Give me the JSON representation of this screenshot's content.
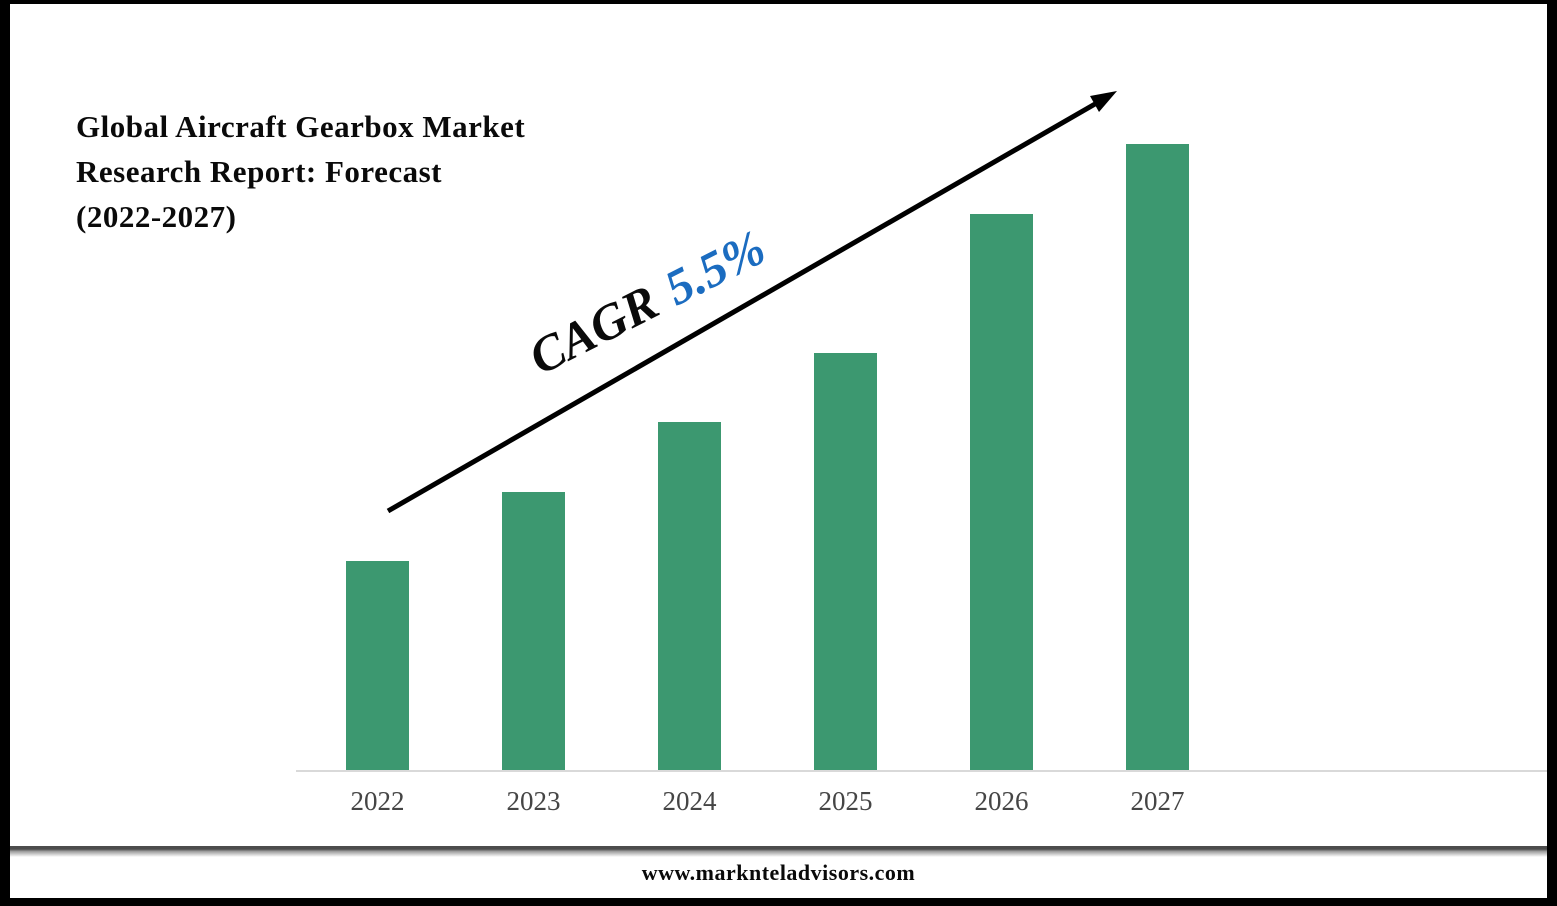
{
  "title": {
    "line1": "Global Aircraft Gearbox Market",
    "line2": "Research Report: Forecast",
    "line3": "(2022-2027)"
  },
  "annotation": {
    "prefix": "CAGR",
    "value": "5.5%"
  },
  "footer": {
    "website": "www.marknteladvisors.com"
  },
  "colors": {
    "bar_green": "#3C9870",
    "annotation_blue": "#1B6CC0",
    "text_black": "#0A0A0A",
    "axis_gray": "#D9D9D9",
    "year_label_gray": "#454545",
    "frame_black": "#000000"
  },
  "chart_data": {
    "type": "bar",
    "title": "Global Aircraft Gearbox Market Research Report: Forecast (2022-2027)",
    "categories": [
      "2022",
      "2023",
      "2024",
      "2025",
      "2026",
      "2027"
    ],
    "values": [
      3,
      4,
      5,
      6,
      8,
      9
    ],
    "ylim": [
      0,
      9
    ],
    "xlabel": "",
    "ylabel": "",
    "grid": false,
    "y_axis_visible": false,
    "legend": "none",
    "bar_color": "#3C9870",
    "annotation": "CAGR 5.5%",
    "annotation_shape": "diagonal-growth-arrow"
  }
}
